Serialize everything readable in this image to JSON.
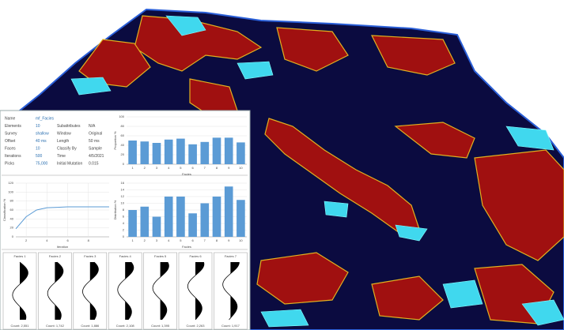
{
  "info_table": {
    "left": [
      [
        "Name",
        "mf_Facies"
      ],
      [
        "Elements",
        "10"
      ],
      [
        "Survey",
        "shallow"
      ],
      [
        "Offset",
        "40 ms"
      ],
      [
        "Faces",
        "10"
      ],
      [
        "Iterations",
        "500"
      ],
      [
        "Picks",
        "75,000"
      ]
    ],
    "right": [
      [
        "Subattributes",
        "N/A"
      ],
      [
        "Window",
        "Original"
      ],
      [
        "Length",
        "50 ms"
      ],
      [
        "Classify By",
        "Sample"
      ],
      [
        "Time",
        "4/5/2021"
      ],
      [
        "Initial Mutation",
        "0.015"
      ]
    ]
  },
  "chart_data": [
    {
      "type": "bar",
      "x_label": "Facies",
      "y_label": "Proportion %",
      "categories": [
        "1",
        "2",
        "3",
        "4",
        "5",
        "6",
        "7",
        "8",
        "9",
        "10"
      ],
      "values": [
        50,
        48,
        45,
        52,
        54,
        42,
        47,
        56,
        56,
        46
      ],
      "color": "#5b9bd5",
      "ylim": [
        0,
        100
      ],
      "yticks": [
        0,
        20,
        40,
        60,
        80,
        100
      ],
      "grid": true
    },
    {
      "type": "line",
      "x_label": "Iteration",
      "y_label": "Classification %",
      "x": [
        1,
        2,
        3,
        4,
        5,
        6,
        7,
        8,
        9,
        10
      ],
      "values": [
        18,
        45,
        60,
        65,
        66,
        67,
        67,
        67,
        67,
        67
      ],
      "color": "#5b9bd5",
      "xlim": [
        1,
        10
      ],
      "xticks": [
        2,
        4,
        6,
        8
      ],
      "ylim": [
        0,
        120
      ],
      "yticks": [
        0,
        20,
        40,
        60,
        80,
        100,
        120
      ],
      "grid": true
    },
    {
      "type": "bar",
      "x_label": "Facies",
      "y_label": "Distribution %",
      "categories": [
        "1",
        "2",
        "3",
        "4",
        "5",
        "6",
        "7",
        "8",
        "9",
        "10"
      ],
      "values": [
        8,
        9,
        6,
        12,
        12,
        7,
        10,
        12,
        15,
        11
      ],
      "color": "#5b9bd5",
      "ylim": [
        0,
        16
      ],
      "yticks": [
        0,
        2,
        4,
        6,
        8,
        10,
        12,
        14,
        16
      ],
      "grid": true
    }
  ],
  "waveforms": [
    {
      "title": "Facies 1",
      "footer": "Count: 2,551"
    },
    {
      "title": "Facies 2",
      "footer": "Count: 1,742"
    },
    {
      "title": "Facies 3",
      "footer": "Count: 1,886"
    },
    {
      "title": "Facies 4",
      "footer": "Count: 2,108"
    },
    {
      "title": "Facies 5",
      "footer": "Count: 1,395"
    },
    {
      "title": "Facies 6",
      "footer": "Count: 2,263"
    },
    {
      "title": "Facies 7",
      "footer": "Count: 1,917"
    }
  ]
}
